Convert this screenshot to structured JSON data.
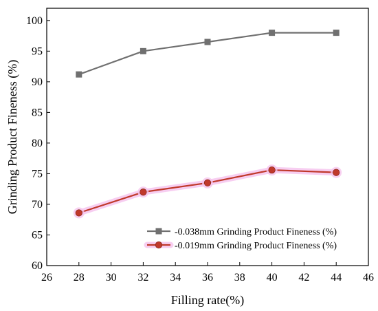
{
  "chart_data": {
    "type": "line",
    "title": "",
    "xlabel": "Filling rate(%)",
    "ylabel": "Grinding Product Fineness (%)",
    "xlim": [
      26,
      46
    ],
    "ylim": [
      60,
      102
    ],
    "xticks": [
      26,
      28,
      30,
      32,
      34,
      36,
      38,
      40,
      42,
      44,
      46
    ],
    "yticks": [
      60,
      65,
      70,
      75,
      80,
      85,
      90,
      95,
      100
    ],
    "grid": false,
    "legend_position": "bottom-right",
    "x": [
      28,
      32,
      36,
      40,
      44
    ],
    "series": [
      {
        "name": "-0.038mm Grinding Product Fineness (%)",
        "values": [
          91.2,
          95.0,
          96.5,
          98.0,
          98.0
        ],
        "color": "#707070",
        "marker": "square"
      },
      {
        "name": "-0.019mm Grinding Product Fineness (%)",
        "values": [
          68.6,
          72.0,
          73.5,
          75.6,
          75.2
        ],
        "color": "#c0392b",
        "halo_color": "#f6c6ee",
        "marker": "circle"
      }
    ]
  }
}
